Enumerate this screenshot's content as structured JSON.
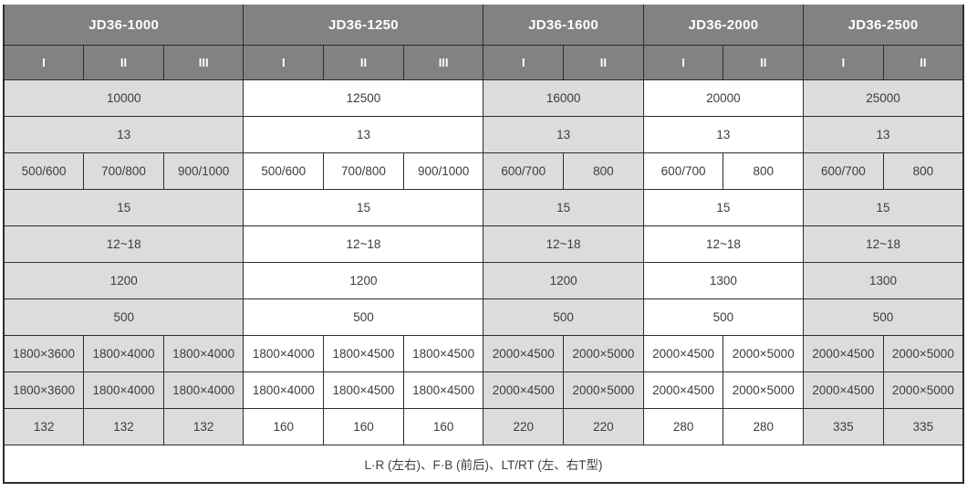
{
  "table": {
    "groups": [
      {
        "model": "JD36-1000",
        "cols": [
          "I",
          "II",
          "III"
        ],
        "shaded": true
      },
      {
        "model": "JD36-1250",
        "cols": [
          "I",
          "II",
          "III"
        ],
        "shaded": false
      },
      {
        "model": "JD36-1600",
        "cols": [
          "I",
          "II"
        ],
        "shaded": true
      },
      {
        "model": "JD36-2000",
        "cols": [
          "I",
          "II"
        ],
        "shaded": false
      },
      {
        "model": "JD36-2500",
        "cols": [
          "I",
          "II"
        ],
        "shaded": true
      }
    ],
    "rows": [
      {
        "merged": true,
        "values": [
          "10000",
          "12500",
          "16000",
          "20000",
          "25000"
        ]
      },
      {
        "merged": true,
        "values": [
          "13",
          "13",
          "13",
          "13",
          "13"
        ]
      },
      {
        "merged": false,
        "values": [
          [
            "500/600",
            "700/800",
            "900/1000"
          ],
          [
            "500/600",
            "700/800",
            "900/1000"
          ],
          [
            "600/700",
            "800"
          ],
          [
            "600/700",
            "800"
          ],
          [
            "600/700",
            "800"
          ]
        ]
      },
      {
        "merged": true,
        "values": [
          "15",
          "15",
          "15",
          "15",
          "15"
        ]
      },
      {
        "merged": true,
        "values": [
          "12~18",
          "12~18",
          "12~18",
          "12~18",
          "12~18"
        ]
      },
      {
        "merged": true,
        "values": [
          "1200",
          "1200",
          "1200",
          "1300",
          "1300"
        ]
      },
      {
        "merged": true,
        "values": [
          "500",
          "500",
          "500",
          "500",
          "500"
        ]
      },
      {
        "merged": false,
        "values": [
          [
            "1800×3600",
            "1800×4000",
            "1800×4000"
          ],
          [
            "1800×4000",
            "1800×4500",
            "1800×4500"
          ],
          [
            "2000×4500",
            "2000×5000"
          ],
          [
            "2000×4500",
            "2000×5000"
          ],
          [
            "2000×4500",
            "2000×5000"
          ]
        ]
      },
      {
        "merged": false,
        "values": [
          [
            "1800×3600",
            "1800×4000",
            "1800×4000"
          ],
          [
            "1800×4000",
            "1800×4500",
            "1800×4500"
          ],
          [
            "2000×4500",
            "2000×5000"
          ],
          [
            "2000×4500",
            "2000×5000"
          ],
          [
            "2000×4500",
            "2000×5000"
          ]
        ]
      },
      {
        "merged": false,
        "values": [
          [
            "132",
            "132",
            "132"
          ],
          [
            "160",
            "160",
            "160"
          ],
          [
            "220",
            "220"
          ],
          [
            "280",
            "280"
          ],
          [
            "335",
            "335"
          ]
        ]
      }
    ],
    "footer": {
      "note": "L·R (左右)、F·B (前后)、LT/RT (左、右T型)"
    },
    "colors": {
      "header_bg": "#828282",
      "header_text": "#ffffff",
      "shaded_cell_bg": "#dcdcdc",
      "white_cell_bg": "#ffffff",
      "border": "#2d2d2d",
      "cell_text": "#3d3d3d"
    }
  }
}
